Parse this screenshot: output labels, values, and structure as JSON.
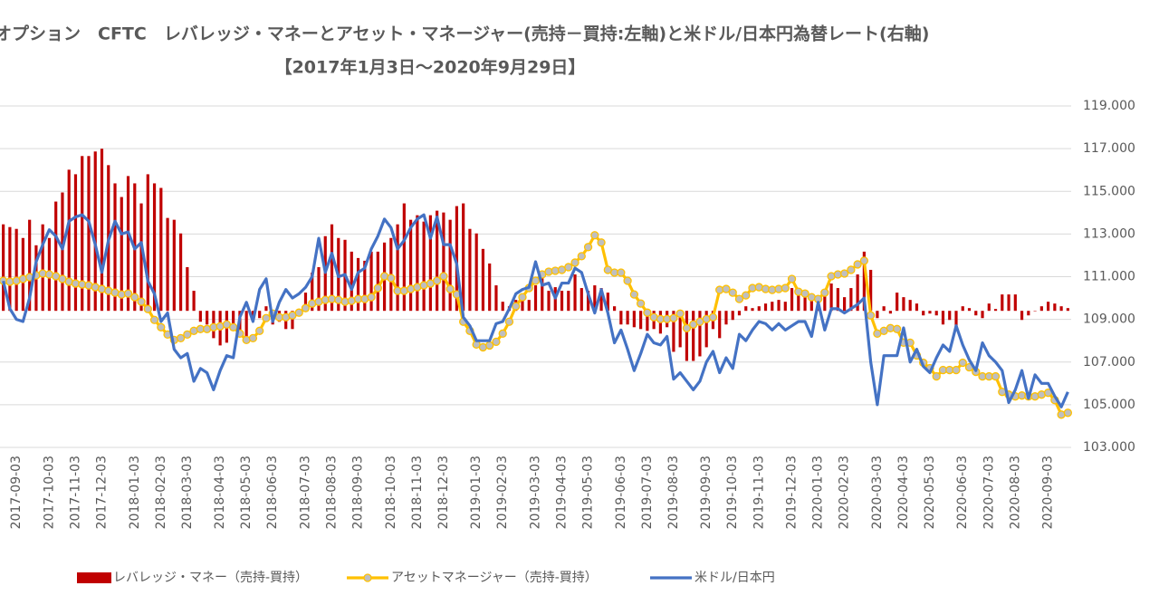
{
  "chart_data": {
    "type": "combo",
    "title": "オプション　CFTC　レバレッジ・マネーとアセット・マネージャー(売持－買持:左軸)と米ドル/日本円為替レート(右軸)",
    "subtitle": "【2017年1月3日～2020年9月29日】",
    "categories": [
      null,
      null,
      "2017-09-03",
      null,
      null,
      null,
      null,
      "2017-10-03",
      null,
      null,
      null,
      "2017-11-03",
      null,
      null,
      null,
      "2017-12-03",
      null,
      null,
      null,
      null,
      "2018-01-03",
      null,
      null,
      null,
      "2018-02-03",
      null,
      null,
      null,
      "2018-03-03",
      null,
      null,
      null,
      null,
      "2018-04-03",
      null,
      null,
      null,
      "2018-05-03",
      null,
      null,
      null,
      "2018-06-03",
      null,
      null,
      null,
      null,
      "2018-07-03",
      null,
      null,
      null,
      "2018-08-03",
      null,
      null,
      null,
      "2018-09-03",
      null,
      null,
      null,
      null,
      "2018-10-03",
      null,
      null,
      null,
      "2018-11-03",
      null,
      null,
      null,
      "2018-12-03",
      null,
      null,
      null,
      null,
      "2019-01-03",
      null,
      null,
      null,
      "2019-02-03",
      null,
      null,
      null,
      null,
      "2019-03-03",
      null,
      null,
      null,
      "2019-04-03",
      null,
      null,
      null,
      "2019-05-03",
      null,
      null,
      null,
      null,
      "2019-06-03",
      null,
      null,
      null,
      "2019-07-03",
      null,
      null,
      null,
      "2019-08-03",
      null,
      null,
      null,
      null,
      "2019-09-03",
      null,
      null,
      null,
      "2019-10-03",
      null,
      null,
      null,
      "2019-11-03",
      null,
      null,
      null,
      null,
      "2019-12-03",
      null,
      null,
      null,
      "2020-01-03",
      null,
      null,
      null,
      "2020-02-03",
      null,
      null,
      null,
      null,
      "2020-03-03",
      null,
      null,
      null,
      "2020-04-03",
      null,
      null,
      null,
      "2020-05-03",
      null,
      null,
      null,
      null,
      "2020-06-03",
      null,
      null,
      null,
      "2020-07-03",
      null,
      null,
      null,
      "2020-08-03",
      null,
      null,
      null,
      null,
      "2020-09-03",
      null,
      null,
      null
    ],
    "ylim": [
      -150,
      225
    ],
    "y2lim": [
      103,
      119
    ],
    "y2ticks": [
      {
        "value": 103,
        "label": "103.000"
      },
      {
        "value": 105,
        "label": "105.000"
      },
      {
        "value": 107,
        "label": "107.000"
      },
      {
        "value": 109,
        "label": "109.000"
      },
      {
        "value": 111,
        "label": "111.000"
      },
      {
        "value": 113,
        "label": "113.000"
      },
      {
        "value": 115,
        "label": "115.000"
      },
      {
        "value": 117,
        "label": "117.000"
      },
      {
        "value": 119,
        "label": "119.000"
      }
    ],
    "grid": true,
    "legend": "bottom",
    "series": [
      {
        "name": "レバレッジ・マネー（売持-買持）",
        "type": "bar",
        "axis": "y",
        "color": "#c00000",
        "values": [
          95,
          92,
          90,
          80,
          100,
          72,
          95,
          80,
          120,
          130,
          155,
          150,
          170,
          170,
          175,
          178,
          160,
          140,
          125,
          148,
          140,
          118,
          150,
          140,
          135,
          102,
          100,
          85,
          48,
          22,
          -12,
          -15,
          -30,
          -38,
          -35,
          -20,
          -22,
          -30,
          -10,
          -8,
          5,
          -15,
          -12,
          -20,
          -20,
          -5,
          20,
          42,
          48,
          82,
          95,
          80,
          78,
          65,
          58,
          55,
          65,
          65,
          75,
          80,
          95,
          118,
          100,
          105,
          98,
          105,
          110,
          108,
          100,
          115,
          118,
          90,
          85,
          68,
          52,
          28,
          10,
          5,
          12,
          18,
          12,
          28,
          40,
          22,
          26,
          22,
          22,
          40,
          25,
          22,
          28,
          25,
          20,
          5,
          -15,
          -15,
          -18,
          -20,
          -22,
          -20,
          -25,
          -18,
          -45,
          -40,
          -55,
          -55,
          -50,
          -40,
          -20,
          -30,
          -15,
          -10,
          -5,
          5,
          3,
          5,
          8,
          10,
          12,
          10,
          25,
          22,
          18,
          12,
          10,
          20,
          30,
          25,
          15,
          25,
          40,
          65,
          45,
          -8,
          5,
          -3,
          20,
          15,
          12,
          8,
          -5,
          -3,
          -5,
          -15,
          -10,
          -20,
          5,
          3,
          -5,
          -8,
          8,
          2,
          18,
          18,
          18,
          -10,
          -5,
          0,
          5,
          10,
          8,
          5,
          3
        ]
      },
      {
        "name": "アセットマネージャー（売持-買持）",
        "type": "line",
        "axis": "y",
        "color": "#ffc000",
        "marker_color": "#bfbfbf",
        "values": [
          33,
          32,
          33,
          35,
          37,
          39,
          41,
          40,
          38,
          35,
          32,
          30,
          29,
          28,
          26,
          24,
          22,
          20,
          18,
          19,
          15,
          10,
          2,
          -10,
          -18,
          -26,
          -32,
          -30,
          -26,
          -22,
          -20,
          -20,
          -18,
          -17,
          -15,
          -18,
          -25,
          -32,
          -30,
          -22,
          -8,
          -3,
          -7,
          -7,
          -5,
          -2,
          3,
          8,
          10,
          12,
          13,
          12,
          10,
          11,
          13,
          13,
          15,
          25,
          38,
          36,
          22,
          22,
          24,
          26,
          28,
          30,
          33,
          38,
          24,
          18,
          -12,
          -22,
          -37,
          -40,
          -38,
          -34,
          -25,
          -12,
          5,
          15,
          25,
          33,
          40,
          43,
          44,
          45,
          48,
          53,
          60,
          70,
          83,
          75,
          45,
          42,
          42,
          33,
          18,
          8,
          -2,
          -7,
          -9,
          -9,
          -8,
          -3,
          -19,
          -15,
          -12,
          -9,
          -7,
          23,
          24,
          20,
          13,
          17,
          25,
          26,
          24,
          23,
          24,
          25,
          35,
          21,
          19,
          15,
          13,
          20,
          38,
          40,
          41,
          45,
          51,
          55,
          -5,
          -25,
          -22,
          -19,
          -20,
          -35,
          -35,
          -49,
          -57,
          -63,
          -72,
          -65,
          -65,
          -65,
          -57,
          -62,
          -67,
          -72,
          -72,
          -72,
          -89,
          -92,
          -94,
          -93,
          -94,
          -94,
          -92,
          -90,
          -98,
          -114,
          -112
        ]
      },
      {
        "name": "米ドル/日本円",
        "type": "line",
        "axis": "y2",
        "color": "#4472c4",
        "values": [
          110.8,
          109.5,
          109.0,
          108.9,
          110.0,
          111.7,
          112.5,
          113.2,
          112.9,
          112.3,
          113.6,
          113.8,
          113.9,
          113.6,
          112.5,
          111.2,
          112.7,
          113.6,
          113.0,
          113.1,
          112.3,
          112.6,
          110.8,
          110.2,
          108.9,
          109.3,
          107.6,
          107.2,
          107.4,
          106.1,
          106.7,
          106.5,
          105.7,
          106.6,
          107.3,
          107.2,
          109.1,
          109.8,
          108.9,
          110.4,
          110.9,
          108.9,
          109.8,
          110.4,
          110.0,
          110.2,
          110.5,
          111.0,
          112.8,
          111.2,
          112.1,
          111.0,
          111.1,
          110.4,
          111.2,
          111.4,
          112.3,
          112.9,
          113.7,
          113.3,
          112.3,
          112.7,
          113.3,
          113.7,
          113.9,
          112.8,
          113.8,
          112.5,
          112.5,
          111.6,
          109.1,
          108.7,
          108.0,
          108.0,
          108.0,
          108.8,
          108.9,
          109.5,
          110.2,
          110.4,
          110.5,
          111.7,
          110.6,
          110.7,
          110.0,
          110.7,
          110.7,
          111.4,
          111.2,
          110.2,
          109.3,
          110.4,
          109.3,
          107.9,
          108.5,
          107.6,
          106.6,
          107.4,
          108.3,
          107.9,
          107.8,
          108.2,
          106.2,
          106.5,
          106.1,
          105.7,
          106.1,
          107.0,
          107.5,
          106.5,
          107.2,
          106.7,
          108.3,
          108.0,
          108.5,
          108.9,
          108.8,
          108.5,
          108.8,
          108.5,
          108.7,
          108.9,
          108.9,
          108.2,
          109.8,
          108.5,
          109.5,
          109.5,
          109.3,
          109.5,
          109.7,
          110.0,
          107.0,
          105.0,
          107.3,
          107.3,
          107.3,
          108.6,
          107.0,
          107.6,
          106.8,
          106.5,
          107.2,
          107.8,
          107.5,
          108.7,
          107.8,
          107.1,
          106.6,
          107.9,
          107.3,
          107.0,
          106.6,
          105.1,
          105.7,
          106.6,
          105.3,
          106.4,
          106.0,
          106.0,
          105.4,
          104.9,
          105.6
        ]
      }
    ]
  }
}
